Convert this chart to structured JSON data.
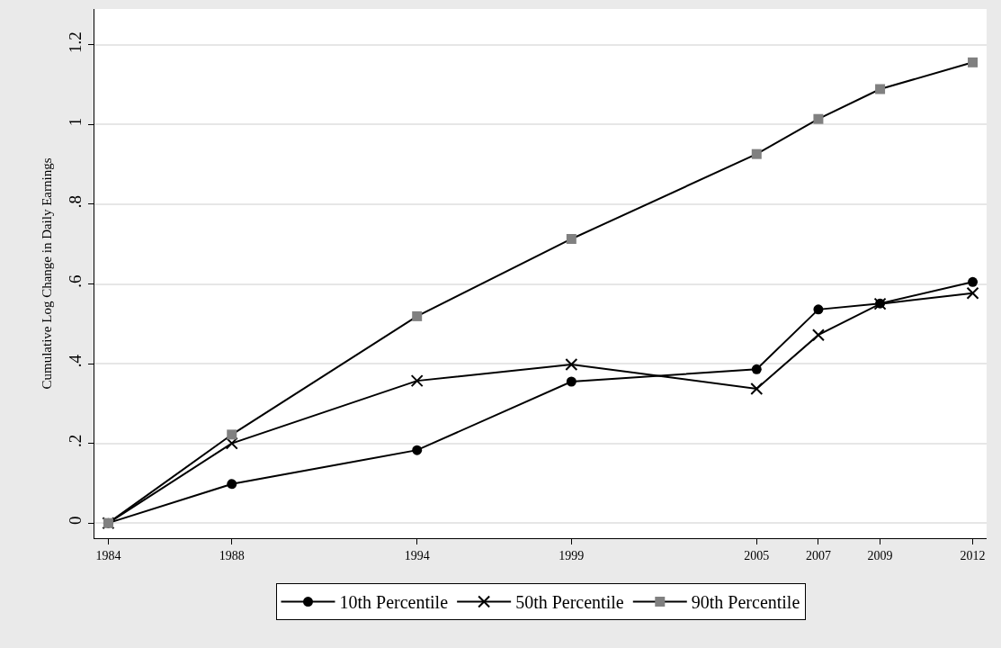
{
  "chart_data": {
    "type": "line",
    "ylabel": "Cumulative Log Change in Daily Earnings",
    "x": [
      1984,
      1988,
      1994,
      1999,
      2005,
      2007,
      2009,
      2012
    ],
    "series": [
      {
        "name": "10th Percentile",
        "color": "#000000",
        "marker": "circle",
        "values": [
          0,
          0.098,
          0.183,
          0.355,
          0.386,
          0.536,
          0.551,
          0.605
        ]
      },
      {
        "name": "50th Percentile",
        "color": "#000000",
        "marker": "cross",
        "values": [
          0,
          0.2,
          0.357,
          0.398,
          0.337,
          0.472,
          0.55,
          0.577
        ]
      },
      {
        "name": "90th Percentile",
        "color": "#808080",
        "marker": "square",
        "values": [
          0,
          0.222,
          0.519,
          0.713,
          0.926,
          1.014,
          1.089,
          1.156
        ]
      }
    ],
    "xlim": [
      1983.55,
      2012.45
    ],
    "xticks": [
      1984,
      1988,
      1994,
      1999,
      2005,
      2007,
      2009,
      2012
    ],
    "ylim": [
      -0.038,
      1.29
    ],
    "yticks": [
      0,
      {
        "value": 0.2,
        "label": ".2"
      },
      {
        "value": 0.4,
        "label": ".4"
      },
      {
        "value": 0.6,
        "label": ".6"
      },
      {
        "value": 0.8,
        "label": ".8"
      },
      1,
      {
        "value": 1.2,
        "label": "1.2"
      }
    ],
    "grid": "y",
    "legend": "bottom",
    "line_style": "solid"
  }
}
